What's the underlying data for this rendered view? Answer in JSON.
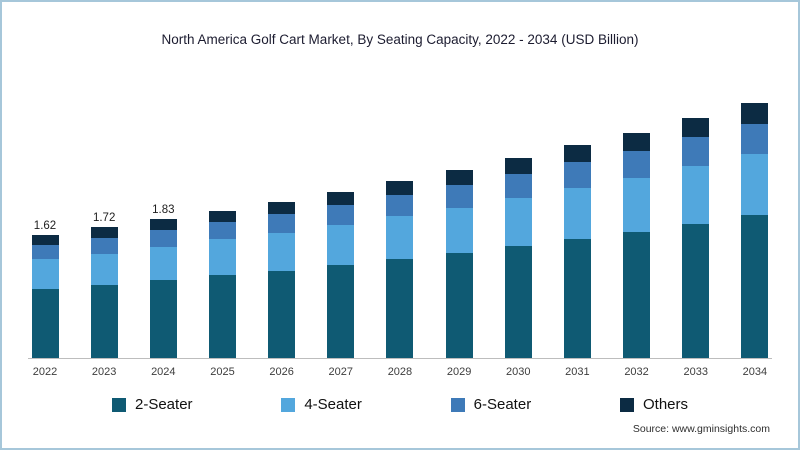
{
  "title": "North America Golf Cart Market, By Seating Capacity, 2022 - 2034 (USD Billion)",
  "source_text": "Source: www.gminsights.com",
  "colors": {
    "two_seater": "#0f5a73",
    "four_seater": "#53a7dd",
    "six_seater": "#3e7ab8",
    "others": "#0c2b43",
    "border": "#a6c7da",
    "axis_line": "#bdbdbd"
  },
  "legend": [
    {
      "label": "2-Seater",
      "color": "#0f5a73"
    },
    {
      "label": "4-Seater",
      "color": "#53a7dd"
    },
    {
      "label": "6-Seater",
      "color": "#3e7ab8"
    },
    {
      "label": "Others",
      "color": "#0c2b43"
    }
  ],
  "chart_data": {
    "type": "bar",
    "stacked": true,
    "title": "North America Golf Cart Market, By Seating Capacity, 2022 - 2034 (USD Billion)",
    "unit": "USD Billion",
    "categories": [
      "2022",
      "2023",
      "2024",
      "2025",
      "2026",
      "2027",
      "2028",
      "2029",
      "2030",
      "2031",
      "2032",
      "2033",
      "2034"
    ],
    "series": [
      {
        "name": "2-Seater",
        "color": "#0f5a73",
        "values": [
          0.91,
          0.96,
          1.02,
          1.09,
          1.15,
          1.23,
          1.3,
          1.38,
          1.47,
          1.56,
          1.66,
          1.76,
          1.88
        ]
      },
      {
        "name": "4-Seater",
        "color": "#53a7dd",
        "values": [
          0.39,
          0.41,
          0.44,
          0.47,
          0.5,
          0.53,
          0.56,
          0.59,
          0.63,
          0.67,
          0.71,
          0.76,
          0.8
        ]
      },
      {
        "name": "6-Seater",
        "color": "#3e7ab8",
        "values": [
          0.19,
          0.21,
          0.22,
          0.23,
          0.25,
          0.26,
          0.28,
          0.3,
          0.32,
          0.34,
          0.36,
          0.38,
          0.4
        ]
      },
      {
        "name": "Others",
        "color": "#0c2b43",
        "values": [
          0.13,
          0.14,
          0.15,
          0.15,
          0.16,
          0.17,
          0.19,
          0.2,
          0.21,
          0.22,
          0.24,
          0.25,
          0.27
        ]
      }
    ],
    "totals": [
      1.62,
      1.72,
      1.83,
      1.94,
      2.06,
      2.19,
      2.33,
      2.47,
      2.63,
      2.79,
      2.97,
      3.15,
      3.35
    ],
    "bar_labels": [
      "1.62",
      "1.72",
      "1.83",
      "",
      "",
      "",
      "",
      "",
      "",
      "",
      "",
      "",
      ""
    ],
    "ylim": [
      0,
      3.5
    ],
    "grid": false,
    "legend_position": "bottom"
  }
}
